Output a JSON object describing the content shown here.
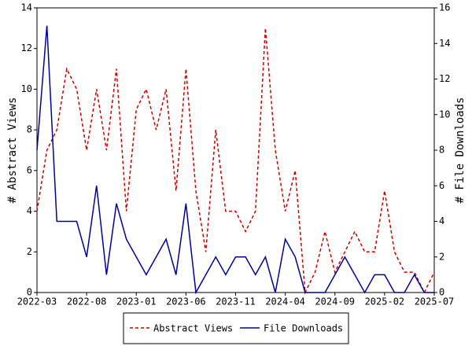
{
  "chart_data": {
    "type": "line",
    "categories": [
      "2022-03",
      null,
      null,
      null,
      null,
      "2022-08",
      null,
      null,
      null,
      null,
      "2023-01",
      null,
      null,
      null,
      null,
      "2023-06",
      null,
      null,
      null,
      null,
      "2023-11",
      null,
      null,
      null,
      null,
      "2024-04",
      null,
      null,
      null,
      null,
      "2024-09",
      null,
      null,
      null,
      null,
      "2025-02",
      null,
      null,
      null,
      null,
      "2025-07"
    ],
    "y_label": "# Abstract Views",
    "y2_label": "# File Downloads",
    "series": [
      {
        "name": "Abstract Views",
        "color": "#cc0000",
        "dash": true,
        "values": [
          4,
          7,
          8,
          11,
          10,
          7,
          10,
          7,
          11,
          4,
          9,
          10,
          8,
          10,
          5,
          11,
          5,
          2,
          8,
          4,
          4,
          3,
          4,
          13,
          7,
          4,
          6,
          0,
          1,
          3,
          1,
          2,
          3,
          2,
          2,
          5,
          2,
          1,
          1,
          0,
          1
        ]
      },
      {
        "name": "File Downloads",
        "color": "#000099",
        "axis": "y2",
        "values": [
          8,
          15,
          4,
          4,
          4,
          2,
          6,
          1,
          5,
          3,
          2,
          1,
          2,
          3,
          1,
          5,
          0,
          1,
          2,
          1,
          2,
          2,
          1,
          2,
          0,
          3,
          2,
          0,
          0,
          0,
          1,
          2,
          1,
          0,
          1,
          1,
          0,
          0,
          1,
          0,
          0
        ]
      }
    ],
    "ylim": [
      0,
      14
    ],
    "yticks": [
      0,
      2,
      4,
      6,
      8,
      10,
      12,
      14
    ],
    "y2lim": [
      0,
      16
    ],
    "y2ticks": [
      0,
      2,
      4,
      6,
      8,
      10,
      12,
      14,
      16
    ],
    "legend": "bottom"
  }
}
